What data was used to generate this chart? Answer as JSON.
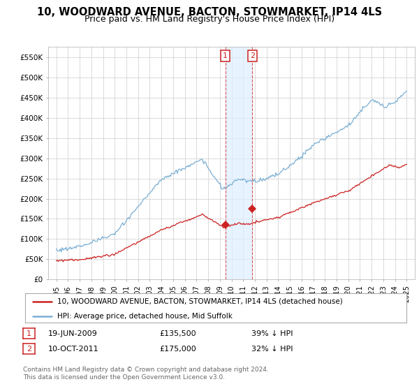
{
  "title": "10, WOODWARD AVENUE, BACTON, STOWMARKET, IP14 4LS",
  "subtitle": "Price paid vs. HM Land Registry's House Price Index (HPI)",
  "ylim": [
    0,
    575000
  ],
  "yticks": [
    0,
    50000,
    100000,
    150000,
    200000,
    250000,
    300000,
    350000,
    400000,
    450000,
    500000,
    550000
  ],
  "ytick_labels": [
    "£0",
    "£50K",
    "£100K",
    "£150K",
    "£200K",
    "£250K",
    "£300K",
    "£350K",
    "£400K",
    "£450K",
    "£500K",
    "£550K"
  ],
  "hpi_color": "#7bafd4",
  "price_color": "#cc2222",
  "background_color": "#ffffff",
  "grid_color": "#cccccc",
  "sale1_date": 2009.47,
  "sale1_price": 135500,
  "sale1_label": "1",
  "sale2_date": 2011.78,
  "sale2_price": 175000,
  "sale2_label": "2",
  "shade_color": "#ddeeff",
  "vline_color": "#dd5555",
  "legend_line1": "10, WOODWARD AVENUE, BACTON, STOWMARKET, IP14 4LS (detached house)",
  "legend_line2": "HPI: Average price, detached house, Mid Suffolk",
  "table_row1": [
    "1",
    "19-JUN-2009",
    "£135,500",
    "39% ↓ HPI"
  ],
  "table_row2": [
    "2",
    "10-OCT-2011",
    "£175,000",
    "32% ↓ HPI"
  ],
  "footer": "Contains HM Land Registry data © Crown copyright and database right 2024.\nThis data is licensed under the Open Government Licence v3.0.",
  "title_fontsize": 10.5,
  "subtitle_fontsize": 9
}
